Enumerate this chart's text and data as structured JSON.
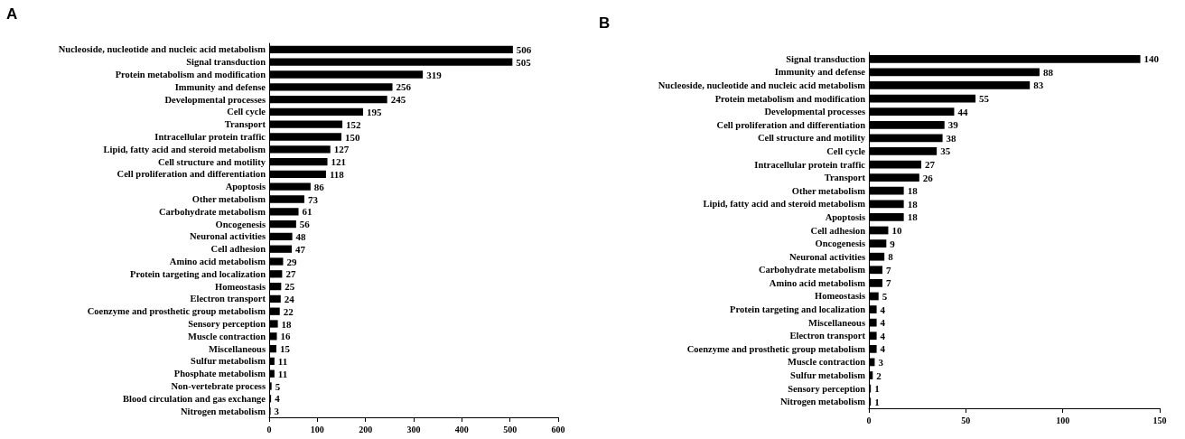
{
  "chart_data": [
    {
      "type": "bar",
      "title": "A",
      "orientation": "horizontal",
      "data_labels": true,
      "grid": false,
      "color": "#000000",
      "xlim": [
        0,
        600
      ],
      "xticks": [
        0,
        100,
        200,
        300,
        400,
        500,
        600
      ],
      "categories": [
        "Nucleoside, nucleotide and nucleic acid metabolism",
        "Signal transduction",
        "Protein metabolism and modification",
        "Immunity and defense",
        "Developmental processes",
        "Cell cycle",
        "Transport",
        "Intracellular protein traffic",
        "Lipid, fatty acid and steroid metabolism",
        "Cell structure and motility",
        "Cell proliferation and differentiation",
        "Apoptosis",
        "Other metabolism",
        "Carbohydrate metabolism",
        "Oncogenesis",
        "Neuronal activities",
        "Cell adhesion",
        "Amino acid metabolism",
        "Protein targeting and localization",
        "Homeostasis",
        "Electron transport",
        "Coenzyme and prosthetic group metabolism",
        "Sensory perception",
        "Muscle contraction",
        "Miscellaneous",
        "Sulfur metabolism",
        "Phosphate metabolism",
        "Non-vertebrate process",
        "Blood circulation and gas exchange",
        "Nitrogen metabolism"
      ],
      "values": [
        506,
        505,
        319,
        256,
        245,
        195,
        152,
        150,
        127,
        121,
        118,
        86,
        73,
        61,
        56,
        48,
        47,
        29,
        27,
        25,
        24,
        22,
        18,
        16,
        15,
        11,
        11,
        5,
        4,
        3
      ]
    },
    {
      "type": "bar",
      "title": "B",
      "orientation": "horizontal",
      "data_labels": true,
      "grid": false,
      "color": "#000000",
      "xlim": [
        0,
        150
      ],
      "xticks": [
        0,
        50,
        100,
        150
      ],
      "categories": [
        "Signal transduction",
        "Immunity and defense",
        "Nucleoside, nucleotide and nucleic acid metabolism",
        "Protein metabolism and modification",
        "Developmental processes",
        "Cell proliferation and differentiation",
        "Cell structure and motility",
        "Cell cycle",
        "Intracellular protein traffic",
        "Transport",
        "Other metabolism",
        "Lipid, fatty acid and steroid metabolism",
        "Apoptosis",
        "Cell adhesion",
        "Oncogenesis",
        "Neuronal activities",
        "Carbohydrate metabolism",
        "Amino acid metabolism",
        "Homeostasis",
        "Protein targeting and localization",
        "Miscellaneous",
        "Electron transport",
        "Coenzyme and prosthetic group metabolism",
        "Muscle contraction",
        "Sulfur metabolism",
        "Sensory perception",
        "Nitrogen metabolism"
      ],
      "values": [
        140,
        88,
        83,
        55,
        44,
        39,
        38,
        35,
        27,
        26,
        18,
        18,
        18,
        10,
        9,
        8,
        7,
        7,
        5,
        4,
        4,
        4,
        4,
        3,
        2,
        1,
        1
      ]
    }
  ]
}
